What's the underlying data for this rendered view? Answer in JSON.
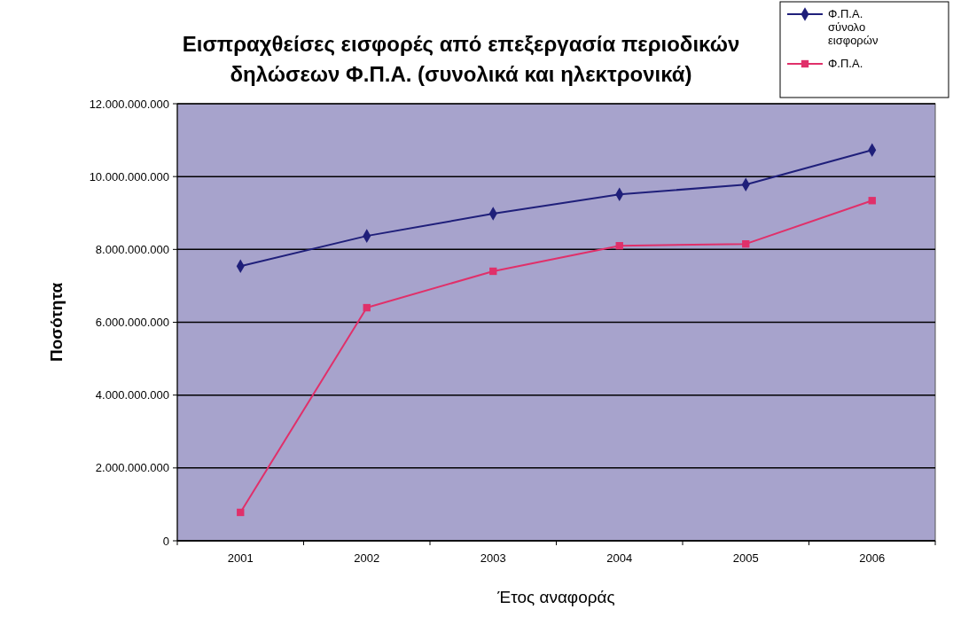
{
  "chart_data": {
    "type": "line",
    "title": "Εισπραχθείσες εισφορές από επεξεργασία περιοδικών\nδηλώσεων Φ.Π.Α. (συνολικά και ηλεκτρονικά)",
    "xlabel": "Έτος αναφοράς",
    "ylabel": "Ποσότητα",
    "categories": [
      "2001",
      "2002",
      "2003",
      "2004",
      "2005",
      "2006"
    ],
    "series": [
      {
        "name": "Φ.Π.Α. σύνολο εισφορών",
        "color": "#1f1f7a",
        "marker": "diamond",
        "values": [
          7540000000,
          8370000000,
          8980000000,
          9510000000,
          9780000000,
          10730000000
        ]
      },
      {
        "name": "Φ.Π.Α.",
        "color": "#e0306a",
        "marker": "square",
        "values": [
          780000000,
          6400000000,
          7400000000,
          8100000000,
          8150000000,
          9340000000
        ]
      }
    ],
    "ylim": [
      0,
      12000000000
    ],
    "yticks": [
      {
        "value": 0,
        "label": "0"
      },
      {
        "value": 2000000000,
        "label": "2.000.000.000"
      },
      {
        "value": 4000000000,
        "label": "4.000.000.000"
      },
      {
        "value": 6000000000,
        "label": "6.000.000.000"
      },
      {
        "value": 8000000000,
        "label": "8.000.000.000"
      },
      {
        "value": 10000000000,
        "label": "10.000.000.000"
      },
      {
        "value": 12000000000,
        "label": "12.000.000.000"
      }
    ],
    "grid": "y",
    "legend": "top right"
  }
}
